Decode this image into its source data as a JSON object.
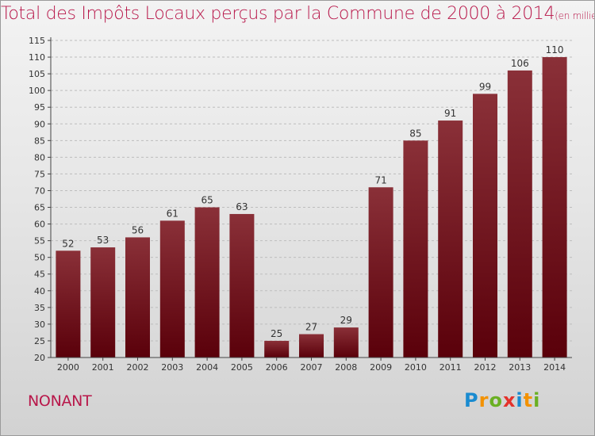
{
  "page": {
    "title_main": "Total des Impôts Locaux perçus par la Commune de 2000 à 2014",
    "title_unit": "(en milliers d'€)",
    "commune": "NONANT",
    "logo": [
      "P",
      "r",
      "o",
      "x",
      "i",
      "t",
      "i"
    ]
  },
  "chart_data": {
    "type": "bar",
    "title": "Total des Impôts Locaux perçus par la Commune de 2000 à 2014",
    "unit": "(en milliers d'€)",
    "categories": [
      "2000",
      "2001",
      "2002",
      "2003",
      "2004",
      "2005",
      "2006",
      "2007",
      "2008",
      "2009",
      "2010",
      "2011",
      "2012",
      "2013",
      "2014"
    ],
    "values": [
      52,
      53,
      56,
      61,
      65,
      63,
      25,
      27,
      29,
      71,
      85,
      91,
      99,
      106,
      110
    ],
    "ylim": [
      20,
      115
    ],
    "yticks": [
      20,
      25,
      30,
      35,
      40,
      45,
      50,
      55,
      60,
      65,
      70,
      75,
      80,
      85,
      90,
      95,
      100,
      105,
      110,
      115
    ],
    "grid": "horizontal dashed",
    "colors": {
      "bar_top": "#8a3038",
      "bar_bottom": "#5a000a",
      "title": "#b8174a"
    }
  }
}
